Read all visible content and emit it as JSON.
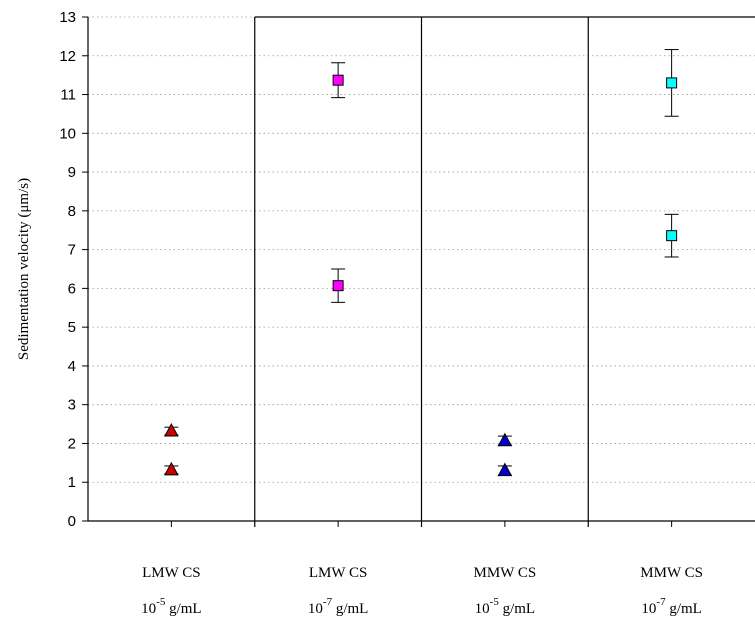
{
  "chart_data": {
    "type": "scatter",
    "ylabel": "Sedimentation velocity (μm/s)",
    "ylim": [
      0,
      13
    ],
    "yticks": [
      0,
      1,
      2,
      3,
      4,
      5,
      6,
      7,
      8,
      9,
      10,
      11,
      12,
      13
    ],
    "grid": "horizontal dotted",
    "categories": [
      {
        "name": "LMW CS",
        "conc_base": "10",
        "conc_exp": "-5",
        "conc_unit": " g/mL"
      },
      {
        "name": "LMW CS",
        "conc_base": "10",
        "conc_exp": "-7",
        "conc_unit": " g/mL"
      },
      {
        "name": "MMW CS",
        "conc_base": "10",
        "conc_exp": "-5",
        "conc_unit": " g/mL"
      },
      {
        "name": "MMW CS",
        "conc_base": "10",
        "conc_exp": "-7",
        "conc_unit": " g/mL"
      }
    ],
    "series": [
      {
        "marker": "triangle",
        "color": "#cc0000",
        "points": [
          {
            "category": 0,
            "y": 2.32,
            "err": 0.1
          },
          {
            "category": 0,
            "y": 1.32,
            "err": 0.1
          }
        ]
      },
      {
        "marker": "square",
        "color": "#ff00ff",
        "points": [
          {
            "category": 1,
            "y": 11.37,
            "err": 0.45
          },
          {
            "category": 1,
            "y": 6.07,
            "err": 0.43
          }
        ]
      },
      {
        "marker": "triangle",
        "color": "#0000cc",
        "points": [
          {
            "category": 2,
            "y": 2.07,
            "err": 0.12
          },
          {
            "category": 2,
            "y": 1.3,
            "err": 0.12
          }
        ]
      },
      {
        "marker": "square",
        "color": "#00ffff",
        "points": [
          {
            "category": 3,
            "y": 11.3,
            "err": 0.86
          },
          {
            "category": 3,
            "y": 7.36,
            "err": 0.55
          }
        ]
      }
    ]
  }
}
